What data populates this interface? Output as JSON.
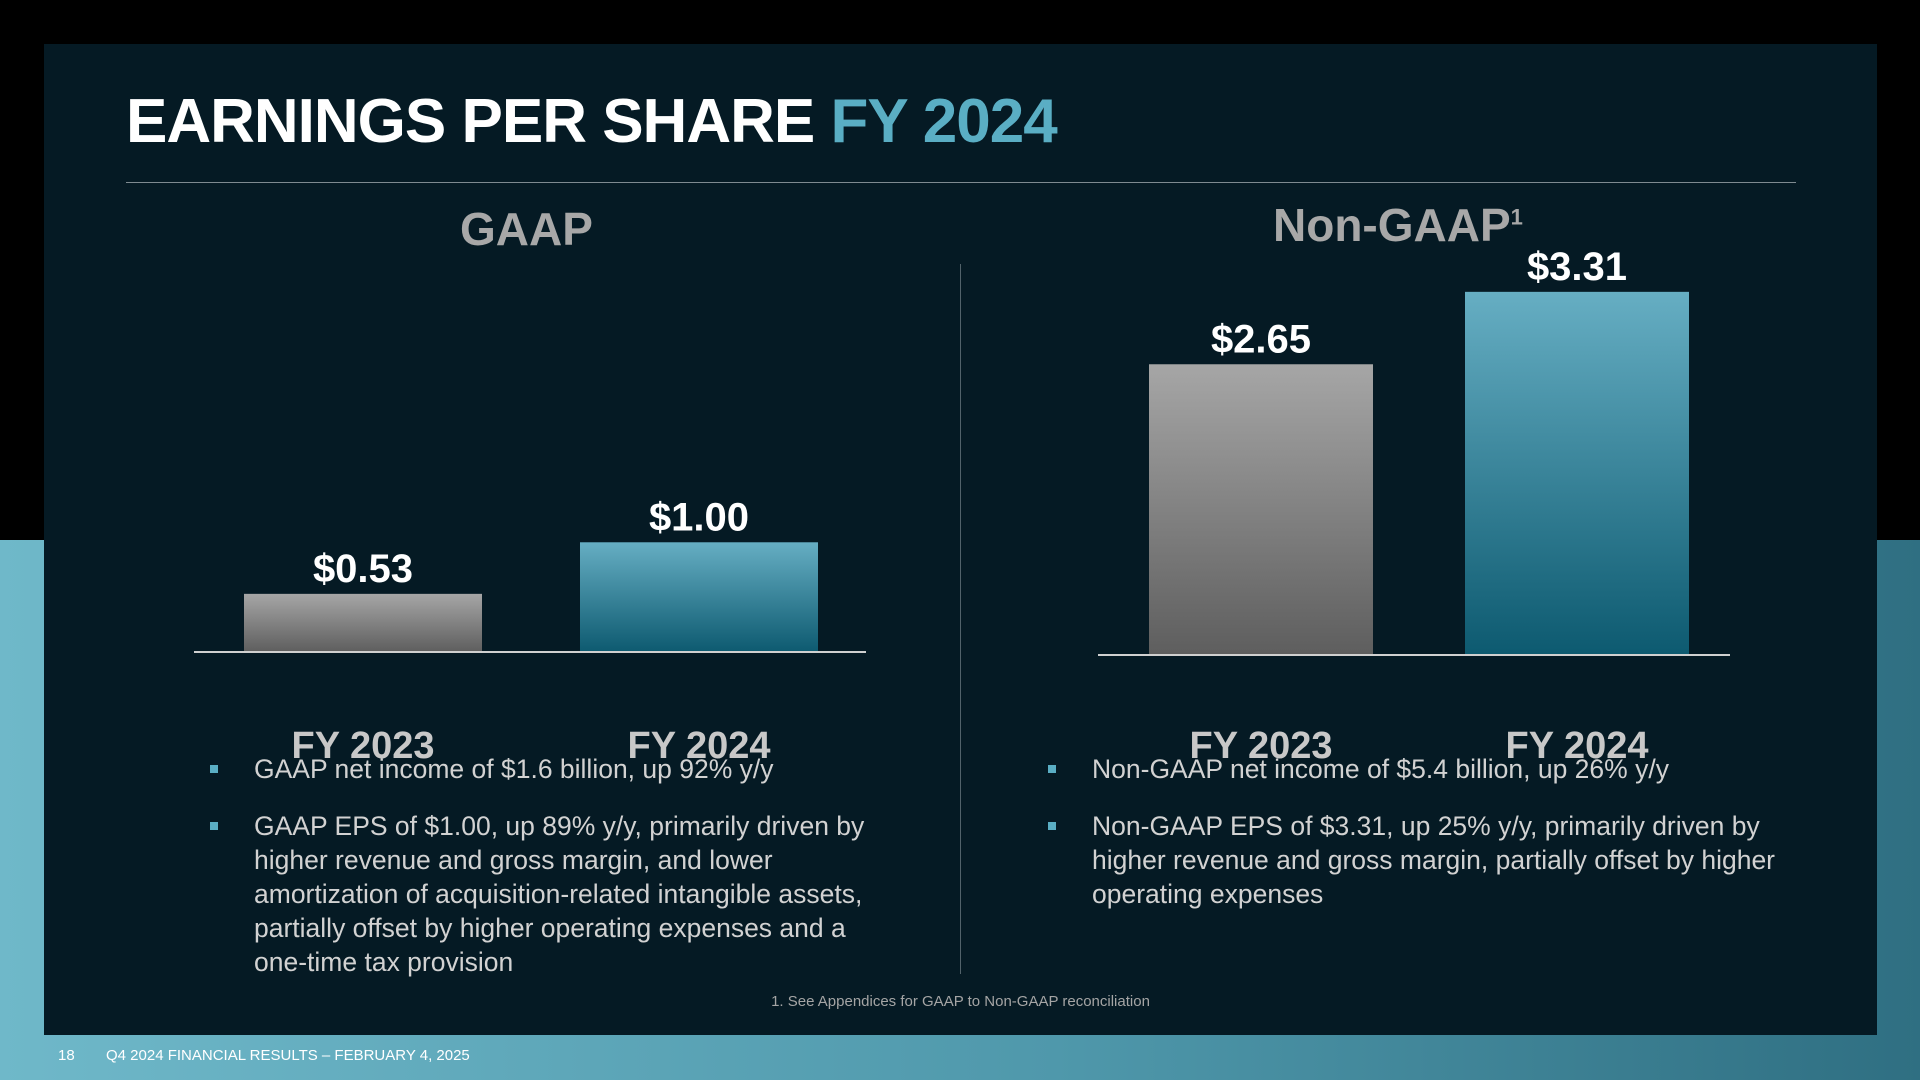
{
  "slide": {
    "title_main": "EARNINGS PER SHARE",
    "title_accent": "FY 2024",
    "footnote": "1. See Appendices for GAAP to Non-GAAP reconciliation",
    "page_number": "18",
    "footer_text": "Q4 2024 FINANCIAL RESULTS – FEBRUARY 4, 2025"
  },
  "gaap": {
    "heading": "GAAP",
    "bullets": [
      "GAAP net income of $1.6 billion, up 92% y/y",
      "GAAP EPS of $1.00, up 89% y/y, primarily driven by higher revenue and gross margin, and lower amortization of acquisition-related intangible assets, partially offset by higher operating expenses and a one-time tax provision"
    ]
  },
  "nongaap": {
    "heading": "Non-GAAP",
    "heading_sup": "1",
    "bullets": [
      "Non-GAAP net income of $5.4 billion, up 26% y/y",
      "Non-GAAP EPS of $3.31, up 25% y/y, primarily driven by higher revenue and gross margin, partially offset by higher operating expenses"
    ]
  },
  "colors": {
    "accent": "#5aaec4",
    "bar_prior_top": "#a6a6a6",
    "bar_prior_bottom": "#5e5e5e",
    "bar_current_top": "#66aec3",
    "bar_current_bottom": "#0d5a70"
  },
  "chart_data": [
    {
      "type": "bar",
      "title": "GAAP",
      "categories": [
        "FY 2023",
        "FY 2024"
      ],
      "values": [
        0.53,
        1.0
      ],
      "value_labels": [
        "$0.53",
        "$1.00"
      ],
      "ylim": [
        0,
        3.5
      ]
    },
    {
      "type": "bar",
      "title": "Non-GAAP",
      "categories": [
        "FY 2023",
        "FY 2024"
      ],
      "values": [
        2.65,
        3.31
      ],
      "value_labels": [
        "$2.65",
        "$3.31"
      ],
      "ylim": [
        0,
        3.5
      ]
    }
  ]
}
